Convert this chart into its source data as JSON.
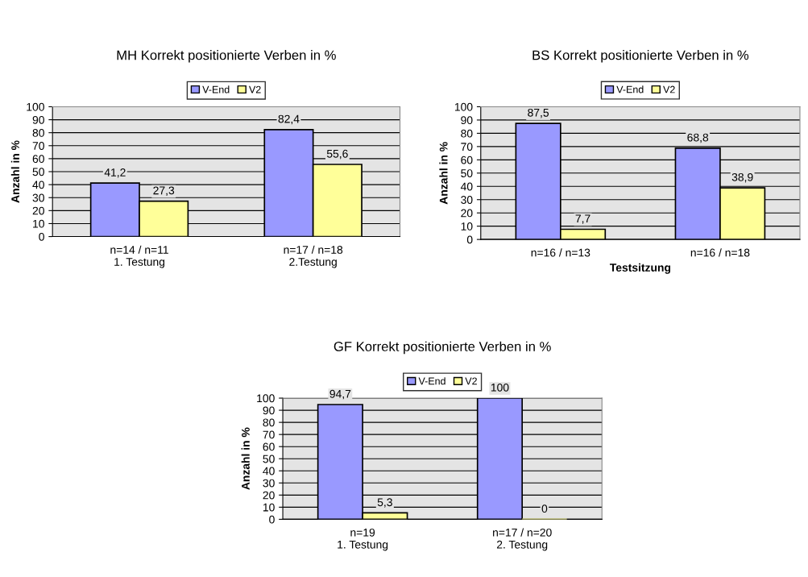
{
  "chart_data": [
    {
      "type": "bar",
      "title": "MH Korrekt positionierte Verben in %",
      "ylabel": "Anzahl in %",
      "categories": [
        "n=14 / n=11\n1. Testung",
        "n=17 / n=18\n2.Testung"
      ],
      "series": [
        {
          "name": "V-End",
          "color": "#9999ff",
          "values": [
            41.2,
            82.4
          ],
          "value_labels": [
            "41,2",
            "82,4"
          ]
        },
        {
          "name": "V2",
          "color": "#ffff99",
          "values": [
            27.3,
            55.6
          ],
          "value_labels": [
            "27,3",
            "55,6"
          ]
        }
      ],
      "ylim": [
        0,
        100
      ],
      "yticks": [
        0,
        10,
        20,
        30,
        40,
        50,
        60,
        70,
        80,
        90,
        100
      ],
      "grid": "y",
      "legend": "top"
    },
    {
      "type": "bar",
      "title": "BS Korrekt positionierte Verben in %",
      "ylabel": "Anzahl in %",
      "xlabel": "Testsitzung",
      "categories": [
        "n=16 / n=13",
        "n=16 / n=18"
      ],
      "series": [
        {
          "name": "V-End",
          "color": "#9999ff",
          "values": [
            87.5,
            68.8
          ],
          "value_labels": [
            "87,5",
            "68,8"
          ]
        },
        {
          "name": "V2",
          "color": "#ffff99",
          "values": [
            7.7,
            38.9
          ],
          "value_labels": [
            "7,7",
            "38,9"
          ]
        }
      ],
      "ylim": [
        0,
        100
      ],
      "yticks": [
        0,
        10,
        20,
        30,
        40,
        50,
        60,
        70,
        80,
        90,
        100
      ],
      "grid": "y",
      "legend": "top"
    },
    {
      "type": "bar",
      "title": "GF Korrekt positionierte Verben in %",
      "ylabel": "Anzahl in %",
      "categories": [
        "n=19\n1. Testung",
        "n=17 / n=20\n2. Testung"
      ],
      "series": [
        {
          "name": "V-End",
          "color": "#9999ff",
          "values": [
            94.7,
            100
          ],
          "value_labels": [
            "94,7",
            "100"
          ]
        },
        {
          "name": "V2",
          "color": "#ffff99",
          "values": [
            5.3,
            0
          ],
          "value_labels": [
            "5,3",
            "0"
          ]
        }
      ],
      "ylim": [
        0,
        100
      ],
      "yticks": [
        0,
        10,
        20,
        30,
        40,
        50,
        60,
        70,
        80,
        90,
        100
      ],
      "grid": "y",
      "legend": "top"
    }
  ]
}
